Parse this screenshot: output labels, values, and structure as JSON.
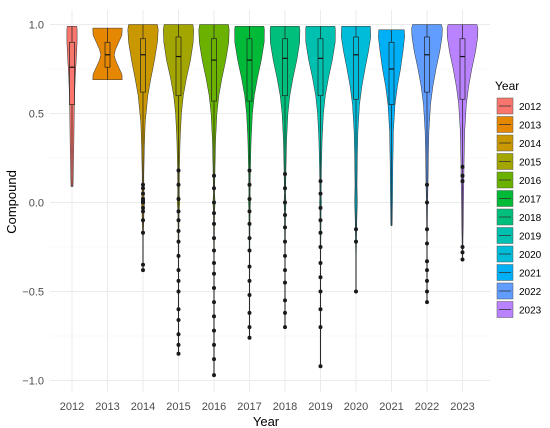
{
  "chart_data": {
    "type": "violin",
    "xlabel": "Year",
    "ylabel": "Compound",
    "ylim": [
      -1.1,
      1.05
    ],
    "y_ticks": [
      {
        "value": 1.0,
        "label": "1.0"
      },
      {
        "value": 0.5,
        "label": "0.5"
      },
      {
        "value": 0.0,
        "label": "0.0"
      },
      {
        "value": -0.5,
        "label": "−0.5"
      },
      {
        "value": -1.0,
        "label": "−1.0"
      }
    ],
    "grid": true,
    "legend": {
      "title": "Year",
      "position": "right"
    },
    "categories": [
      "2012",
      "2013",
      "2014",
      "2015",
      "2016",
      "2017",
      "2018",
      "2019",
      "2020",
      "2021",
      "2022",
      "2023"
    ],
    "colors": [
      "#F8766D",
      "#E58700",
      "#C99800",
      "#A3A500",
      "#6BB100",
      "#00BA38",
      "#00BF7D",
      "#00C0AF",
      "#00BCD8",
      "#00B0F6",
      "#619CFF",
      "#B983FF",
      "#E76BF3",
      "#FD61D1",
      "#FF67A4"
    ],
    "series": [
      {
        "year": "2012",
        "color": "#F8766D",
        "min": 0.09,
        "max": 0.99,
        "q1": 0.55,
        "median": 0.76,
        "q3": 0.9,
        "profile": [
          [
            0.09,
            0.06
          ],
          [
            0.2,
            0.09
          ],
          [
            0.35,
            0.12
          ],
          [
            0.5,
            0.14
          ],
          [
            0.6,
            0.16
          ],
          [
            0.7,
            0.2
          ],
          [
            0.8,
            0.26
          ],
          [
            0.9,
            0.32
          ],
          [
            0.97,
            0.32
          ],
          [
            0.99,
            0.3
          ]
        ],
        "outliers": []
      },
      {
        "year": "2013",
        "color": "#E58700",
        "min": 0.69,
        "max": 0.98,
        "q1": 0.76,
        "median": 0.83,
        "q3": 0.9,
        "profile": [
          [
            0.69,
            0.92
          ],
          [
            0.72,
            0.9
          ],
          [
            0.76,
            0.7
          ],
          [
            0.8,
            0.5
          ],
          [
            0.83,
            0.42
          ],
          [
            0.86,
            0.5
          ],
          [
            0.9,
            0.7
          ],
          [
            0.94,
            0.9
          ],
          [
            0.98,
            0.92
          ]
        ],
        "outliers": []
      },
      {
        "year": "2014",
        "color": "#C99800",
        "min": -0.38,
        "max": 1.0,
        "q1": 0.62,
        "median": 0.83,
        "q3": 0.92,
        "profile": [
          [
            -0.38,
            0.02
          ],
          [
            -0.2,
            0.02
          ],
          [
            -0.05,
            0.06
          ],
          [
            0.0,
            0.1
          ],
          [
            0.05,
            0.06
          ],
          [
            0.15,
            0.05
          ],
          [
            0.3,
            0.08
          ],
          [
            0.45,
            0.14
          ],
          [
            0.6,
            0.3
          ],
          [
            0.7,
            0.5
          ],
          [
            0.8,
            0.72
          ],
          [
            0.9,
            0.9
          ],
          [
            0.97,
            0.95
          ],
          [
            1.0,
            0.9
          ]
        ],
        "outliers": [
          -0.38,
          -0.35,
          -0.17,
          -0.1,
          -0.05,
          -0.03,
          0.0,
          0.01,
          0.02,
          0.05,
          0.08,
          0.1
        ]
      },
      {
        "year": "2015",
        "color": "#A3A500",
        "min": -0.85,
        "max": 1.0,
        "q1": 0.6,
        "median": 0.82,
        "q3": 0.93,
        "profile": [
          [
            -0.85,
            0.02
          ],
          [
            -0.3,
            0.02
          ],
          [
            -0.05,
            0.04
          ],
          [
            0.0,
            0.08
          ],
          [
            0.05,
            0.05
          ],
          [
            0.2,
            0.06
          ],
          [
            0.35,
            0.1
          ],
          [
            0.5,
            0.18
          ],
          [
            0.6,
            0.3
          ],
          [
            0.7,
            0.5
          ],
          [
            0.8,
            0.75
          ],
          [
            0.9,
            0.92
          ],
          [
            0.97,
            0.95
          ],
          [
            1.0,
            0.9
          ]
        ],
        "outliers": [
          -0.85,
          -0.8,
          -0.74,
          -0.66,
          -0.6,
          -0.5,
          -0.44,
          -0.38,
          -0.3,
          -0.22,
          -0.16,
          -0.1,
          -0.05,
          0.02,
          0.1,
          0.18
        ]
      },
      {
        "year": "2016",
        "color": "#6BB100",
        "min": -0.97,
        "max": 1.0,
        "q1": 0.57,
        "median": 0.8,
        "q3": 0.92,
        "profile": [
          [
            -0.97,
            0.02
          ],
          [
            -0.3,
            0.02
          ],
          [
            -0.05,
            0.04
          ],
          [
            0.0,
            0.07
          ],
          [
            0.05,
            0.04
          ],
          [
            0.2,
            0.06
          ],
          [
            0.35,
            0.1
          ],
          [
            0.5,
            0.18
          ],
          [
            0.6,
            0.3
          ],
          [
            0.7,
            0.5
          ],
          [
            0.8,
            0.74
          ],
          [
            0.9,
            0.92
          ],
          [
            0.97,
            0.95
          ],
          [
            1.0,
            0.9
          ]
        ],
        "outliers": [
          -0.97,
          -0.88,
          -0.8,
          -0.72,
          -0.64,
          -0.56,
          -0.48,
          -0.4,
          -0.34,
          -0.27,
          -0.2,
          -0.12,
          -0.06,
          0.0,
          0.08,
          0.15
        ]
      },
      {
        "year": "2017",
        "color": "#00BA38",
        "min": -0.76,
        "max": 0.99,
        "q1": 0.57,
        "median": 0.8,
        "q3": 0.92,
        "profile": [
          [
            -0.76,
            0.02
          ],
          [
            -0.3,
            0.02
          ],
          [
            -0.05,
            0.04
          ],
          [
            0.0,
            0.06
          ],
          [
            0.05,
            0.04
          ],
          [
            0.2,
            0.06
          ],
          [
            0.35,
            0.1
          ],
          [
            0.5,
            0.18
          ],
          [
            0.6,
            0.3
          ],
          [
            0.7,
            0.5
          ],
          [
            0.8,
            0.74
          ],
          [
            0.9,
            0.92
          ],
          [
            0.97,
            0.93
          ],
          [
            0.99,
            0.9
          ]
        ],
        "outliers": [
          -0.76,
          -0.7,
          -0.62,
          -0.52,
          -0.44,
          -0.36,
          -0.27,
          -0.2,
          -0.12,
          -0.05,
          0.02,
          0.1,
          0.18
        ]
      },
      {
        "year": "2018",
        "color": "#00BF7D",
        "min": -0.7,
        "max": 0.99,
        "q1": 0.6,
        "median": 0.81,
        "q3": 0.92,
        "profile": [
          [
            -0.7,
            0.02
          ],
          [
            -0.3,
            0.02
          ],
          [
            -0.05,
            0.04
          ],
          [
            0.0,
            0.06
          ],
          [
            0.05,
            0.04
          ],
          [
            0.2,
            0.06
          ],
          [
            0.35,
            0.1
          ],
          [
            0.5,
            0.18
          ],
          [
            0.6,
            0.3
          ],
          [
            0.7,
            0.5
          ],
          [
            0.8,
            0.74
          ],
          [
            0.9,
            0.92
          ],
          [
            0.97,
            0.93
          ],
          [
            0.99,
            0.9
          ]
        ],
        "outliers": [
          -0.7,
          -0.62,
          -0.55,
          -0.45,
          -0.38,
          -0.3,
          -0.22,
          -0.14,
          -0.07,
          0.0,
          0.08,
          0.16
        ]
      },
      {
        "year": "2019",
        "color": "#00C0AF",
        "min": -0.92,
        "max": 0.99,
        "q1": 0.6,
        "median": 0.81,
        "q3": 0.92,
        "profile": [
          [
            -0.92,
            0.02
          ],
          [
            -0.3,
            0.02
          ],
          [
            -0.05,
            0.04
          ],
          [
            0.0,
            0.06
          ],
          [
            0.05,
            0.04
          ],
          [
            0.2,
            0.06
          ],
          [
            0.35,
            0.1
          ],
          [
            0.5,
            0.18
          ],
          [
            0.6,
            0.3
          ],
          [
            0.7,
            0.5
          ],
          [
            0.8,
            0.74
          ],
          [
            0.9,
            0.92
          ],
          [
            0.97,
            0.93
          ],
          [
            0.99,
            0.9
          ]
        ],
        "outliers": [
          -0.92,
          -0.7,
          -0.6,
          -0.5,
          -0.42,
          -0.34,
          -0.25,
          -0.17,
          -0.1,
          -0.03,
          0.05,
          0.12
        ]
      },
      {
        "year": "2020",
        "color": "#00BCD8",
        "min": -0.5,
        "max": 0.99,
        "q1": 0.58,
        "median": 0.83,
        "q3": 0.93,
        "profile": [
          [
            -0.5,
            0.02
          ],
          [
            -0.3,
            0.02
          ],
          [
            -0.1,
            0.05
          ],
          [
            0.0,
            0.08
          ],
          [
            0.1,
            0.06
          ],
          [
            0.25,
            0.08
          ],
          [
            0.4,
            0.12
          ],
          [
            0.55,
            0.22
          ],
          [
            0.65,
            0.36
          ],
          [
            0.75,
            0.56
          ],
          [
            0.85,
            0.78
          ],
          [
            0.93,
            0.92
          ],
          [
            0.99,
            0.9
          ]
        ],
        "outliers": [
          -0.5,
          -0.22,
          -0.15
        ]
      },
      {
        "year": "2021",
        "color": "#00B0F6",
        "min": -0.13,
        "max": 0.97,
        "q1": 0.55,
        "median": 0.75,
        "q3": 0.9,
        "profile": [
          [
            -0.13,
            0.04
          ],
          [
            0.0,
            0.06
          ],
          [
            0.2,
            0.08
          ],
          [
            0.4,
            0.12
          ],
          [
            0.55,
            0.22
          ],
          [
            0.65,
            0.36
          ],
          [
            0.75,
            0.56
          ],
          [
            0.85,
            0.72
          ],
          [
            0.93,
            0.82
          ],
          [
            0.97,
            0.8
          ]
        ],
        "outliers": []
      },
      {
        "year": "2022",
        "color": "#619CFF",
        "min": -0.56,
        "max": 1.0,
        "q1": 0.62,
        "median": 0.83,
        "q3": 0.93,
        "profile": [
          [
            -0.56,
            0.02
          ],
          [
            -0.2,
            0.02
          ],
          [
            0.0,
            0.04
          ],
          [
            0.1,
            0.06
          ],
          [
            0.25,
            0.08
          ],
          [
            0.4,
            0.12
          ],
          [
            0.55,
            0.22
          ],
          [
            0.65,
            0.36
          ],
          [
            0.75,
            0.56
          ],
          [
            0.85,
            0.8
          ],
          [
            0.93,
            0.94
          ],
          [
            0.98,
            0.96
          ],
          [
            1.0,
            0.9
          ]
        ],
        "outliers": [
          -0.56,
          -0.5,
          -0.44,
          -0.38,
          -0.33,
          -0.23,
          -0.15,
          0.0,
          0.1
        ]
      },
      {
        "year": "2023",
        "color": "#B983FF",
        "min": -0.32,
        "max": 1.0,
        "q1": 0.58,
        "median": 0.82,
        "q3": 0.92,
        "profile": [
          [
            -0.32,
            0.02
          ],
          [
            -0.2,
            0.03
          ],
          [
            -0.1,
            0.05
          ],
          [
            0.0,
            0.06
          ],
          [
            0.1,
            0.08
          ],
          [
            0.25,
            0.1
          ],
          [
            0.4,
            0.14
          ],
          [
            0.55,
            0.24
          ],
          [
            0.65,
            0.38
          ],
          [
            0.75,
            0.58
          ],
          [
            0.85,
            0.82
          ],
          [
            0.93,
            0.95
          ],
          [
            0.98,
            0.96
          ],
          [
            1.0,
            0.9
          ]
        ],
        "outliers": [
          -0.32,
          -0.28,
          -0.25,
          0.12,
          0.15,
          0.2
        ]
      }
    ]
  }
}
